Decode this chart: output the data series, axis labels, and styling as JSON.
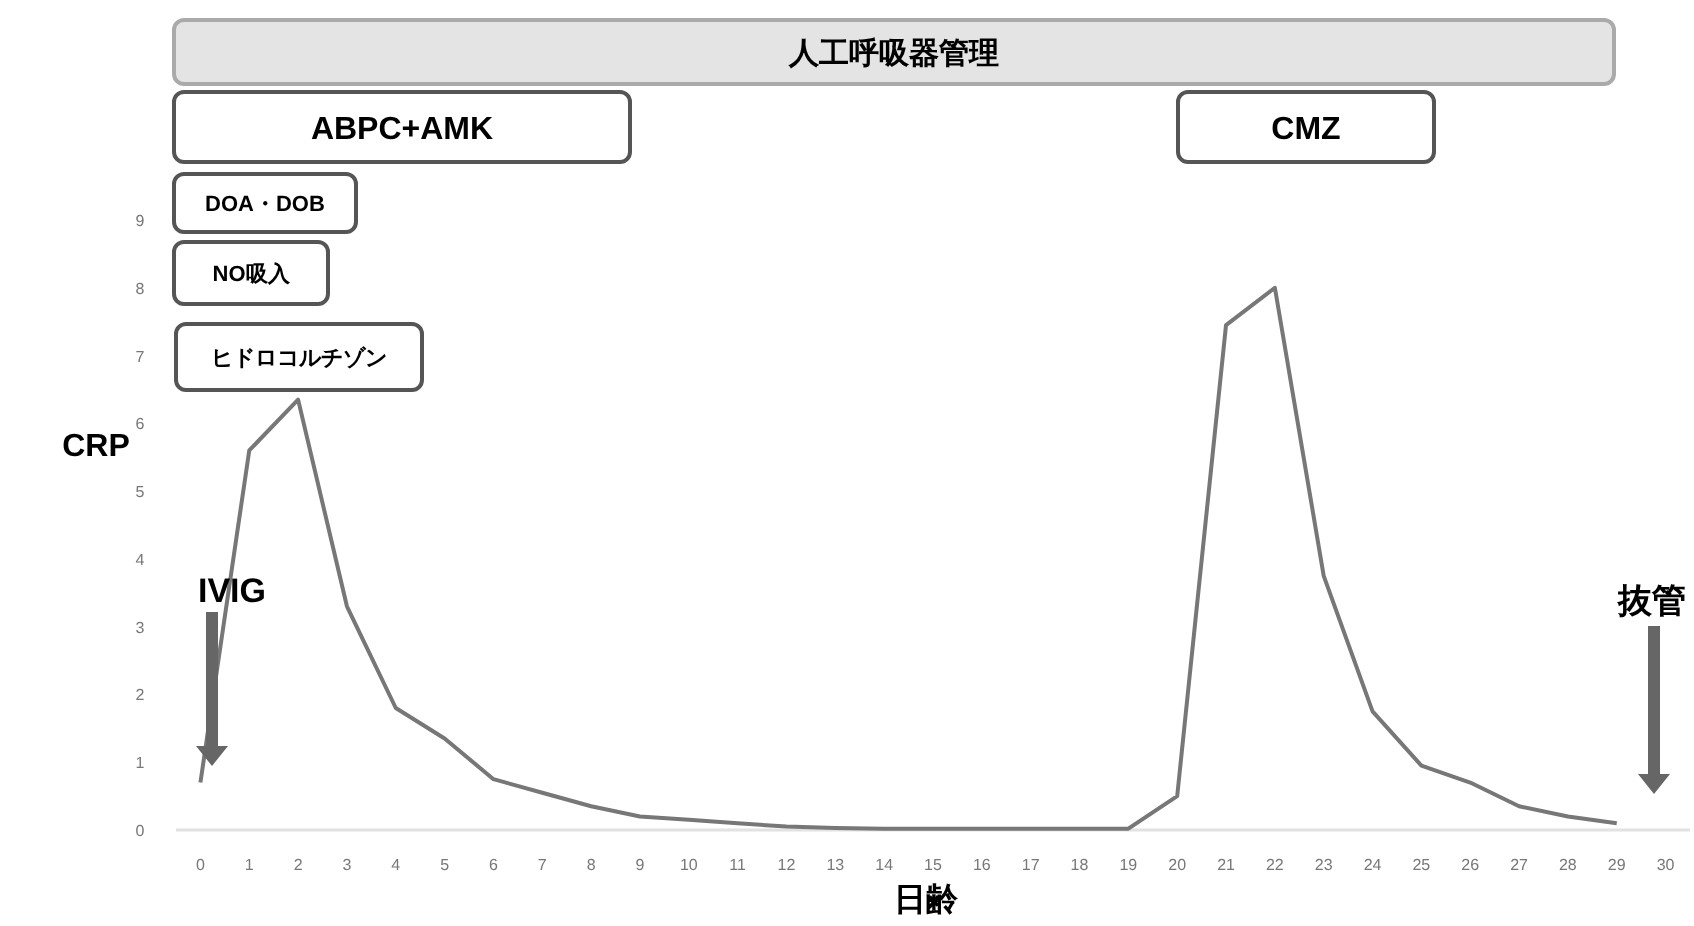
{
  "chart_data": {
    "type": "line",
    "xlabel": "日齢",
    "ylabel": "CRP",
    "x": [
      0,
      1,
      2,
      3,
      4,
      5,
      6,
      7,
      8,
      9,
      10,
      11,
      12,
      13,
      14,
      15,
      16,
      17,
      18,
      19,
      20,
      21,
      22,
      23,
      24,
      25,
      26,
      27,
      28,
      29
    ],
    "series": [
      {
        "color": "#777777",
        "values": [
          0.7,
          5.6,
          6.35,
          3.3,
          1.8,
          1.35,
          0.75,
          0.55,
          0.35,
          0.2,
          0.15,
          0.1,
          0.05,
          0.03,
          0.02,
          0.02,
          0.02,
          0.02,
          0.02,
          0.02,
          0.5,
          7.45,
          8.0,
          3.75,
          1.75,
          0.95,
          0.7,
          0.35,
          0.2,
          0.1
        ]
      }
    ],
    "xlim": [
      -0.5,
      30.5
    ],
    "ylim": [
      0,
      9
    ],
    "xticks": [
      0,
      1,
      2,
      3,
      4,
      5,
      6,
      7,
      8,
      9,
      10,
      11,
      12,
      13,
      14,
      15,
      16,
      17,
      18,
      19,
      20,
      21,
      22,
      23,
      24,
      25,
      26,
      27,
      28,
      29,
      30
    ],
    "yticks": [
      0,
      1,
      2,
      3,
      4,
      5,
      6,
      7,
      8,
      9
    ],
    "grid": false,
    "marker": "none",
    "line_style": "solid",
    "annotations": [
      "人工呼吸器管理",
      "ABPC+AMK",
      "CMZ",
      "DOA・DOB",
      "NO吸入",
      "ヒドロコルチゾン",
      "IVIG",
      "抜管"
    ]
  }
}
